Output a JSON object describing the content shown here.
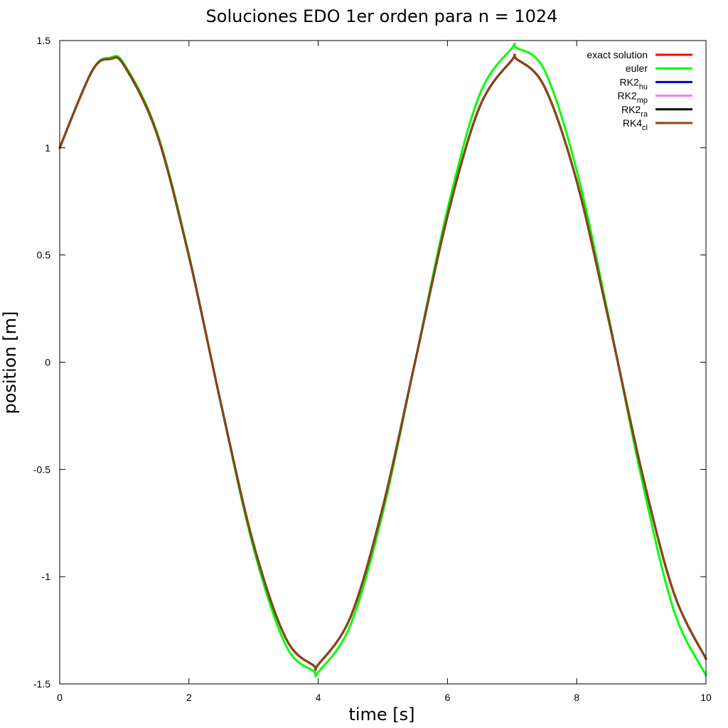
{
  "chart_data": {
    "type": "line",
    "title": "Soluciones EDO 1er orden para n = 1024",
    "xlabel": "time [s]",
    "ylabel": "position [m]",
    "xlim": [
      0,
      10
    ],
    "ylim": [
      -1.5,
      1.5
    ],
    "xticks": [
      "0",
      "2",
      "4",
      "6",
      "8",
      "10"
    ],
    "yticks": [
      "1.5",
      "1",
      "0.5",
      "0",
      "-0.5",
      "-1",
      "-1.5"
    ],
    "grid": false,
    "legend_position": "top-right",
    "x": [
      0,
      0.5,
      0.785,
      1,
      1.5,
      2,
      2.5,
      3,
      3.5,
      3.927,
      4,
      4.5,
      5,
      5.5,
      6,
      6.5,
      7,
      7.069,
      7.5,
      8,
      8.5,
      9,
      9.5,
      10
    ],
    "series": [
      {
        "name": "exact solution",
        "label_main": "exact solution",
        "label_sub": "",
        "color": "#ff0000",
        "values": [
          1,
          1.357,
          1.414,
          1.382,
          1.068,
          0.493,
          -0.2,
          -0.849,
          -1.288,
          -1.414,
          -1.41,
          -1.188,
          -0.675,
          0.003,
          0.681,
          1.192,
          1.41,
          1.414,
          1.285,
          0.844,
          0.19,
          -0.501,
          -1.073,
          -1.383
        ]
      },
      {
        "name": "euler",
        "label_main": "euler",
        "label_sub": "",
        "color": "#00ff00",
        "values": [
          1,
          1.359,
          1.42,
          1.389,
          1.077,
          0.5,
          -0.203,
          -0.867,
          -1.321,
          -1.44,
          -1.445,
          -1.225,
          -0.7,
          0.003,
          0.712,
          1.25,
          1.465,
          1.466,
          1.362,
          0.894,
          0.203,
          -0.536,
          -1.155,
          -1.46
        ]
      },
      {
        "name": "RK2hu",
        "label_main": "RK2",
        "label_sub": "hu",
        "color": "#0000cc",
        "values": [
          1,
          1.357,
          1.414,
          1.382,
          1.068,
          0.493,
          -0.2,
          -0.849,
          -1.288,
          -1.414,
          -1.41,
          -1.188,
          -0.675,
          0.003,
          0.681,
          1.192,
          1.41,
          1.414,
          1.285,
          0.844,
          0.19,
          -0.501,
          -1.073,
          -1.383
        ]
      },
      {
        "name": "RK2mp",
        "label_main": "RK2",
        "label_sub": "mp",
        "color": "#ee82ee",
        "values": [
          1,
          1.357,
          1.414,
          1.382,
          1.068,
          0.493,
          -0.2,
          -0.849,
          -1.288,
          -1.414,
          -1.41,
          -1.188,
          -0.675,
          0.003,
          0.681,
          1.192,
          1.41,
          1.414,
          1.285,
          0.844,
          0.19,
          -0.501,
          -1.073,
          -1.383
        ]
      },
      {
        "name": "RK2ra",
        "label_main": "RK2",
        "label_sub": "ra",
        "color": "#000000",
        "values": [
          1,
          1.357,
          1.414,
          1.382,
          1.068,
          0.493,
          -0.2,
          -0.849,
          -1.288,
          -1.414,
          -1.41,
          -1.188,
          -0.675,
          0.003,
          0.681,
          1.192,
          1.41,
          1.414,
          1.285,
          0.844,
          0.19,
          -0.501,
          -1.073,
          -1.383
        ]
      },
      {
        "name": "RK4cl",
        "label_main": "RK4",
        "label_sub": "cl",
        "color": "#8b4513",
        "values": [
          1,
          1.357,
          1.414,
          1.382,
          1.068,
          0.493,
          -0.2,
          -0.849,
          -1.288,
          -1.414,
          -1.41,
          -1.188,
          -0.675,
          0.003,
          0.681,
          1.192,
          1.41,
          1.414,
          1.285,
          0.844,
          0.19,
          -0.501,
          -1.073,
          -1.383
        ]
      }
    ]
  }
}
